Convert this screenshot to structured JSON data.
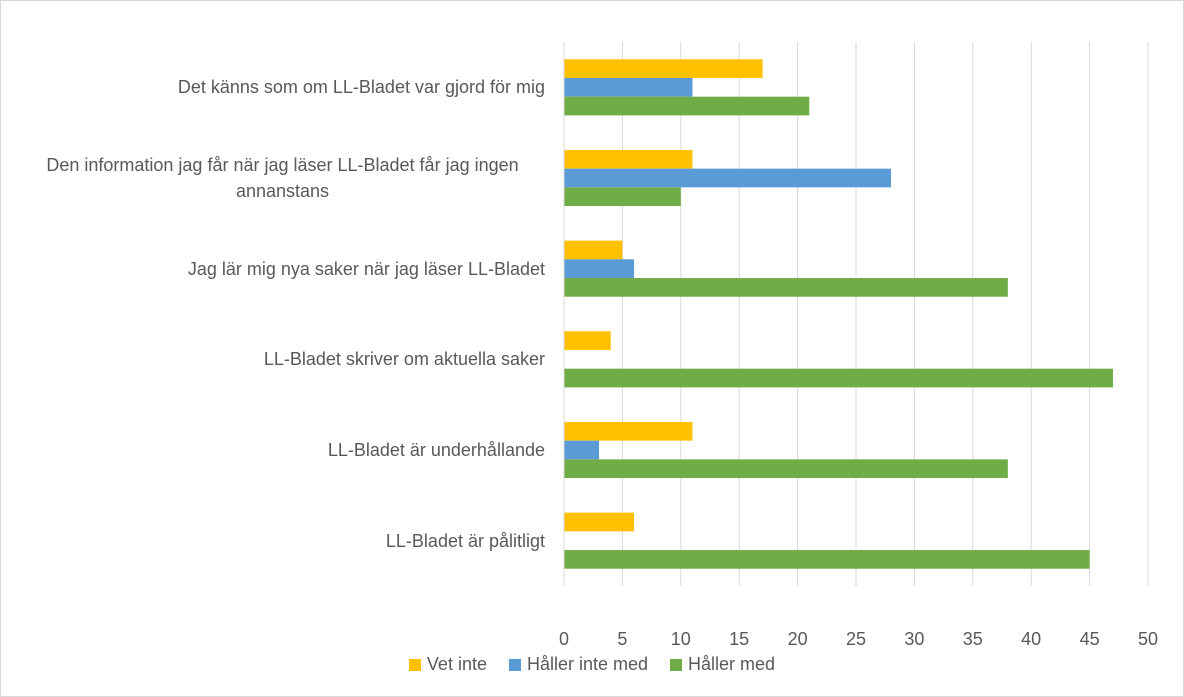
{
  "chart_data": {
    "type": "bar",
    "orientation": "horizontal",
    "categories": [
      "Det känns som om LL-Bladet var gjord för mig",
      "Den information jag får när jag läser LL-Bladet får jag ingen annanstans",
      "Jag lär mig nya saker när jag läser LL-Bladet",
      "LL-Bladet skriver om aktuella saker",
      "LL-Bladet är underhållande",
      "LL-Bladet är pålitligt"
    ],
    "series": [
      {
        "name": "Vet inte",
        "color": "#ffc000",
        "values": [
          17,
          11,
          5,
          4,
          11,
          6
        ]
      },
      {
        "name": "Håller inte med",
        "color": "#5b9bd5",
        "values": [
          11,
          28,
          6,
          0,
          3,
          0
        ]
      },
      {
        "name": "Håller med",
        "color": "#70ad47",
        "values": [
          21,
          10,
          38,
          47,
          38,
          45
        ]
      }
    ],
    "xlim": [
      0,
      50
    ],
    "xticks": [
      0,
      5,
      10,
      15,
      20,
      25,
      30,
      35,
      40,
      45,
      50
    ],
    "grid": true,
    "legend": "bottom"
  }
}
